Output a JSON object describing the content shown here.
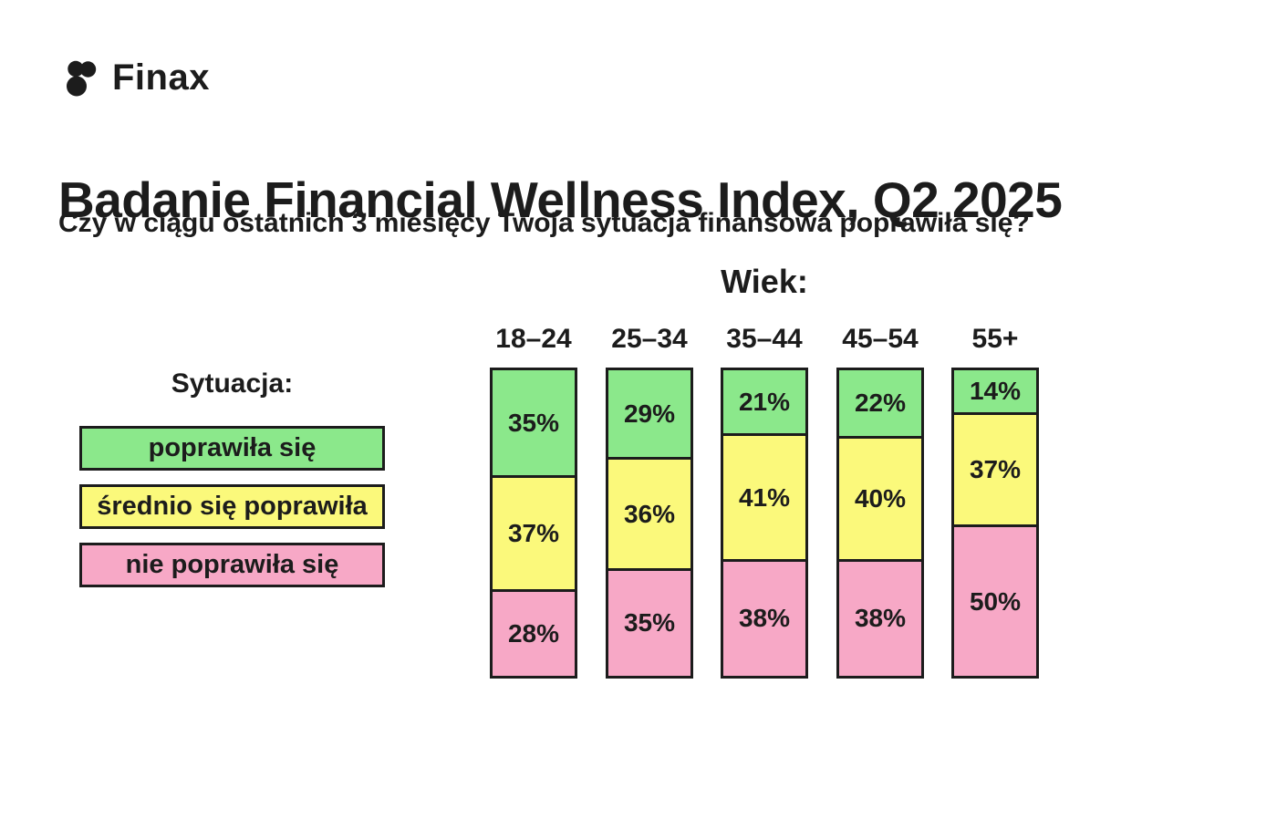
{
  "logo": {
    "brand": "Finax",
    "icon": "finax-dots-logo"
  },
  "header": {
    "title": "Badanie Financial Wellness Index, Q2 2025",
    "subtitle": "Czy w ciągu ostatnich 3 miesięcy Twoja sytuacja finansowa poprawiła się?"
  },
  "legend": {
    "heading": "Sytuacja:",
    "items": [
      {
        "key": "improved",
        "label": "poprawiła się",
        "color": "#8BE88B"
      },
      {
        "key": "moderately-improved",
        "label": "średnio się poprawiła",
        "color": "#FBF97B"
      },
      {
        "key": "not-improved",
        "label": "nie poprawiła się",
        "color": "#F7A8C6"
      }
    ]
  },
  "chart_data": {
    "type": "bar",
    "stacked": true,
    "title": "Badanie Financial Wellness Index, Q2 2025",
    "question": "Czy w ciągu ostatnich 3 miesięcy Twoja sytuacja finansowa poprawiła się?",
    "group_heading": "Wiek:",
    "categories": [
      "18–24",
      "25–34",
      "35–44",
      "45–54",
      "55+"
    ],
    "series": [
      {
        "name": "poprawiła się",
        "color": "#8BE88B",
        "values": [
          35,
          29,
          21,
          22,
          14
        ]
      },
      {
        "name": "średnio się poprawiła",
        "color": "#FBF97B",
        "values": [
          37,
          36,
          41,
          40,
          37
        ]
      },
      {
        "name": "nie poprawiła się",
        "color": "#F7A8C6",
        "values": [
          28,
          35,
          38,
          38,
          50
        ]
      }
    ],
    "value_suffix": "%",
    "orientation": "vertical",
    "legend_position": "left",
    "grid": false
  },
  "colors": {
    "background": "#ffffff",
    "text": "#1c1c1c",
    "border": "#1c1c1c",
    "green": "#8BE88B",
    "yellow": "#FBF97B",
    "pink": "#F7A8C6"
  }
}
